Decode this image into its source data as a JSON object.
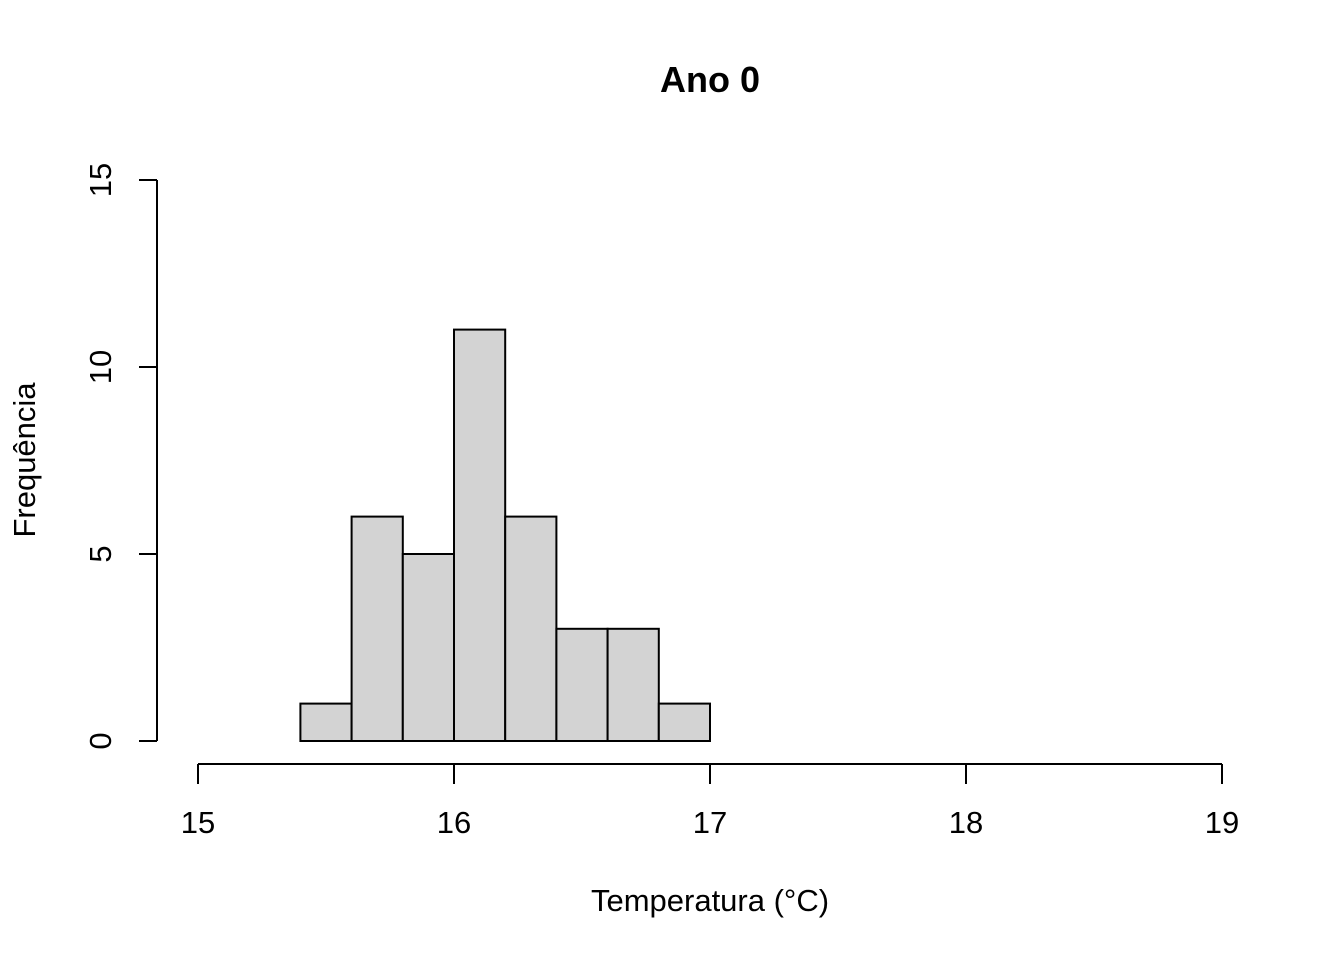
{
  "chart_data": {
    "type": "bar",
    "subtype": "histogram",
    "title": "Ano 0",
    "xlabel": "Temperatura (°C)",
    "ylabel": "Frequência",
    "xlim": [
      15,
      19
    ],
    "ylim": [
      0,
      15
    ],
    "x_ticks": [
      15,
      16,
      17,
      18,
      19
    ],
    "y_ticks": [
      0,
      5,
      10,
      15
    ],
    "bins": [
      {
        "start": 15.4,
        "end": 15.6,
        "count": 1
      },
      {
        "start": 15.6,
        "end": 15.8,
        "count": 6
      },
      {
        "start": 15.8,
        "end": 16.0,
        "count": 5
      },
      {
        "start": 16.0,
        "end": 16.2,
        "count": 11
      },
      {
        "start": 16.2,
        "end": 16.4,
        "count": 6
      },
      {
        "start": 16.4,
        "end": 16.6,
        "count": 3
      },
      {
        "start": 16.6,
        "end": 16.8,
        "count": 3
      },
      {
        "start": 16.8,
        "end": 17.0,
        "count": 1
      }
    ],
    "bar_fill": "#d3d3d3",
    "bar_stroke": "#000000",
    "grid": false,
    "legend": "none"
  }
}
